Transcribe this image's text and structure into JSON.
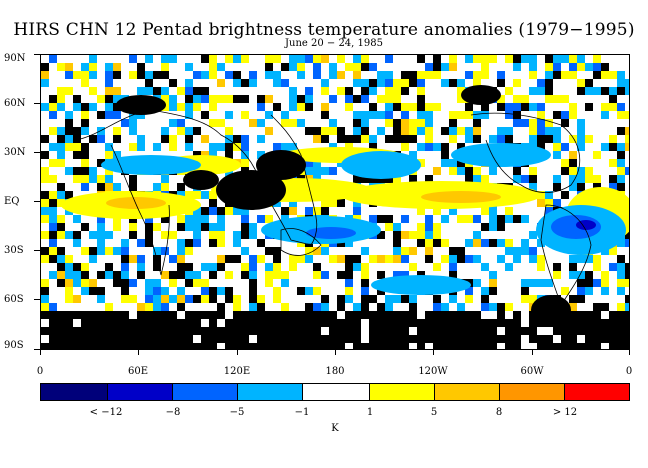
{
  "title": "HIRS CHN 12 Pentad brightness temperature anomalies (1979−1995)",
  "subtitle": "June 20 − 24, 1985",
  "lat_labels": [
    "90N",
    "60N",
    "30N",
    "EQ",
    "30S",
    "60S",
    "90S"
  ],
  "lon_labels": [
    "0",
    "60E",
    "120E",
    "180",
    "120W",
    "60W",
    "0"
  ],
  "colorbar": {
    "colors": [
      "#00007a",
      "#0000c8",
      "#0064ff",
      "#00b4ff",
      "#ffffff",
      "#ffff00",
      "#ffc800",
      "#ff9600",
      "#ff6400",
      "#ff0000"
    ],
    "labels": [
      "< −12",
      "−8",
      "−5",
      "−1",
      "1",
      "5",
      "8",
      "> 12"
    ],
    "unit": "K"
  },
  "map_colors": {
    "missing": "#000000",
    "coast": "#000000"
  }
}
